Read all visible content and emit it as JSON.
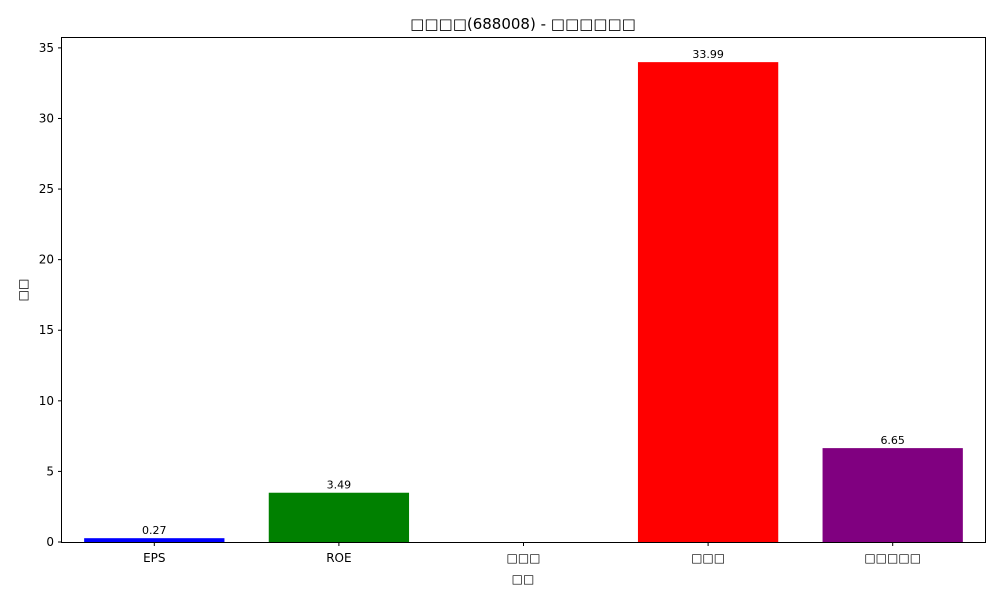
{
  "chart_data": {
    "type": "bar",
    "title": "□□□□(688008) - □□□□□□",
    "xlabel": "□□",
    "ylabel": "□□",
    "categories": [
      "EPS",
      "ROE",
      "□□□",
      "□□□",
      "□□□□□"
    ],
    "values": [
      0.27,
      3.49,
      0,
      33.99,
      6.65
    ],
    "data_labels": [
      "0.27",
      "3.49",
      "",
      "33.99",
      "6.65"
    ],
    "colors": [
      "#0000ff",
      "#008000",
      "#ffa500",
      "#ff0000",
      "#800080"
    ],
    "ylim": [
      0,
      35.7
    ],
    "yticks": [
      0,
      5,
      10,
      15,
      20,
      25,
      30,
      35
    ],
    "grid": false,
    "legend": "none"
  }
}
